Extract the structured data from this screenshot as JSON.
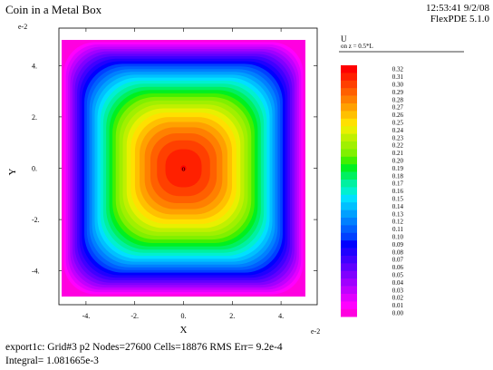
{
  "header": {
    "title": "Coin in a Metal Box",
    "timestamp": "12:53:41 9/2/08",
    "software": "FlexPDE 5.1.0"
  },
  "plot": {
    "x_exponent": "e-2",
    "y_exponent": "e-2",
    "center_marker": "o"
  },
  "legend": {
    "variable": "U",
    "note": "on z = 0.5*L"
  },
  "footer": {
    "line1": "export1c:  Grid#3  p2  Nodes=27600 Cells=18876 RMS Err= 9.2e-4",
    "line2": "Integral=  1.081665e-3"
  },
  "chart_data": {
    "type": "heatmap",
    "title": "Coin in a Metal Box",
    "xlabel": "X",
    "ylabel": "Y",
    "xlim": [
      -5,
      5
    ],
    "ylim": [
      -5,
      5
    ],
    "x_ticks": [
      -4,
      -2,
      0,
      2,
      4
    ],
    "y_ticks": [
      -4,
      -2,
      0,
      2,
      4
    ],
    "x_tick_labels": [
      "-4.",
      "-2.",
      "0.",
      "2.",
      "4."
    ],
    "y_tick_labels": [
      "-4.",
      "-2.",
      "0.",
      "2.",
      "4."
    ],
    "field": "U",
    "value_min": 0.0,
    "value_max": 0.32,
    "legend_levels": [
      "0.32",
      "0.31",
      "0.30",
      "0.29",
      "0.28",
      "0.27",
      "0.26",
      "0.25",
      "0.24",
      "0.23",
      "0.22",
      "0.21",
      "0.20",
      "0.19",
      "0.18",
      "0.17",
      "0.16",
      "0.15",
      "0.14",
      "0.13",
      "0.12",
      "0.11",
      "0.10",
      "0.09",
      "0.08",
      "0.07",
      "0.06",
      "0.05",
      "0.04",
      "0.03",
      "0.02",
      "0.01",
      "0.00"
    ],
    "legend_colors": [
      "#ff0000",
      "#ff2000",
      "#ff4000",
      "#ff6000",
      "#ff8000",
      "#ffa000",
      "#ffc000",
      "#ffe000",
      "#e8f000",
      "#c0f000",
      "#a0f000",
      "#80f000",
      "#40f000",
      "#00f020",
      "#00f060",
      "#00f0a0",
      "#00f0d0",
      "#00e0ff",
      "#00c0ff",
      "#00a0ff",
      "#0080ff",
      "#0060ff",
      "#0040ff",
      "#0000ff",
      "#2000ff",
      "#4000ff",
      "#6000ff",
      "#8000ff",
      "#a000ff",
      "#c000ff",
      "#e000ff",
      "#ff00ff",
      "#ff00e0"
    ]
  }
}
